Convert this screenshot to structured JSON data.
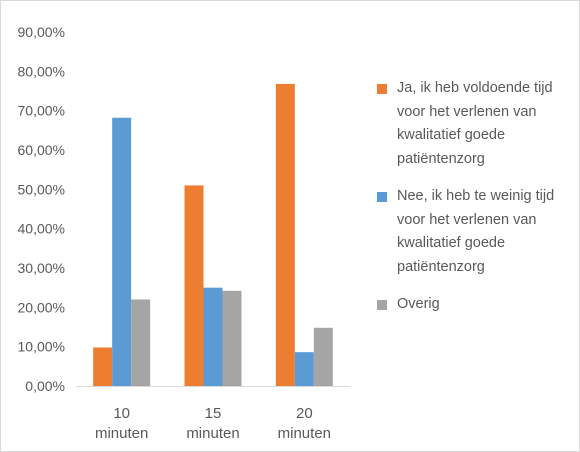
{
  "chart_data": {
    "type": "bar",
    "categories": [
      "10 minuten",
      "15 minuten",
      "20 minuten"
    ],
    "category_lines": [
      [
        "10",
        "minuten"
      ],
      [
        "15",
        "minuten"
      ],
      [
        "20",
        "minuten"
      ]
    ],
    "series": [
      {
        "name": "Ja, ik heb voldoende tijd voor het verlenen van kwalitatief goede patiëntenzorg",
        "color": "#ed7d31",
        "values": [
          9.8,
          51.0,
          76.8
        ]
      },
      {
        "name": "Nee, ik heb te weinig tijd voor het verlenen van kwalitatief goede patiëntenzorg",
        "color": "#5b9bd5",
        "values": [
          68.2,
          25.0,
          8.6
        ]
      },
      {
        "name": "Overig",
        "color": "#a5a5a5",
        "values": [
          22.0,
          24.2,
          14.8
        ]
      }
    ],
    "yticks": [
      "0,00%",
      "10,00%",
      "20,00%",
      "30,00%",
      "40,00%",
      "50,00%",
      "60,00%",
      "70,00%",
      "80,00%",
      "90,00%"
    ],
    "ylim": [
      0,
      90
    ],
    "grid": false,
    "legend_position": "right",
    "title": "",
    "xlabel": "",
    "ylabel": ""
  },
  "legend": [
    {
      "label": "Ja, ik heb voldoende tijd voor het verlenen van kwalitatief goede patiëntenzorg",
      "color": "#ed7d31"
    },
    {
      "label": "Nee, ik heb te weinig tijd voor het verlenen van kwalitatief goede patiëntenzorg",
      "color": "#5b9bd5"
    },
    {
      "label": "Overig",
      "color": "#a5a5a5"
    }
  ]
}
